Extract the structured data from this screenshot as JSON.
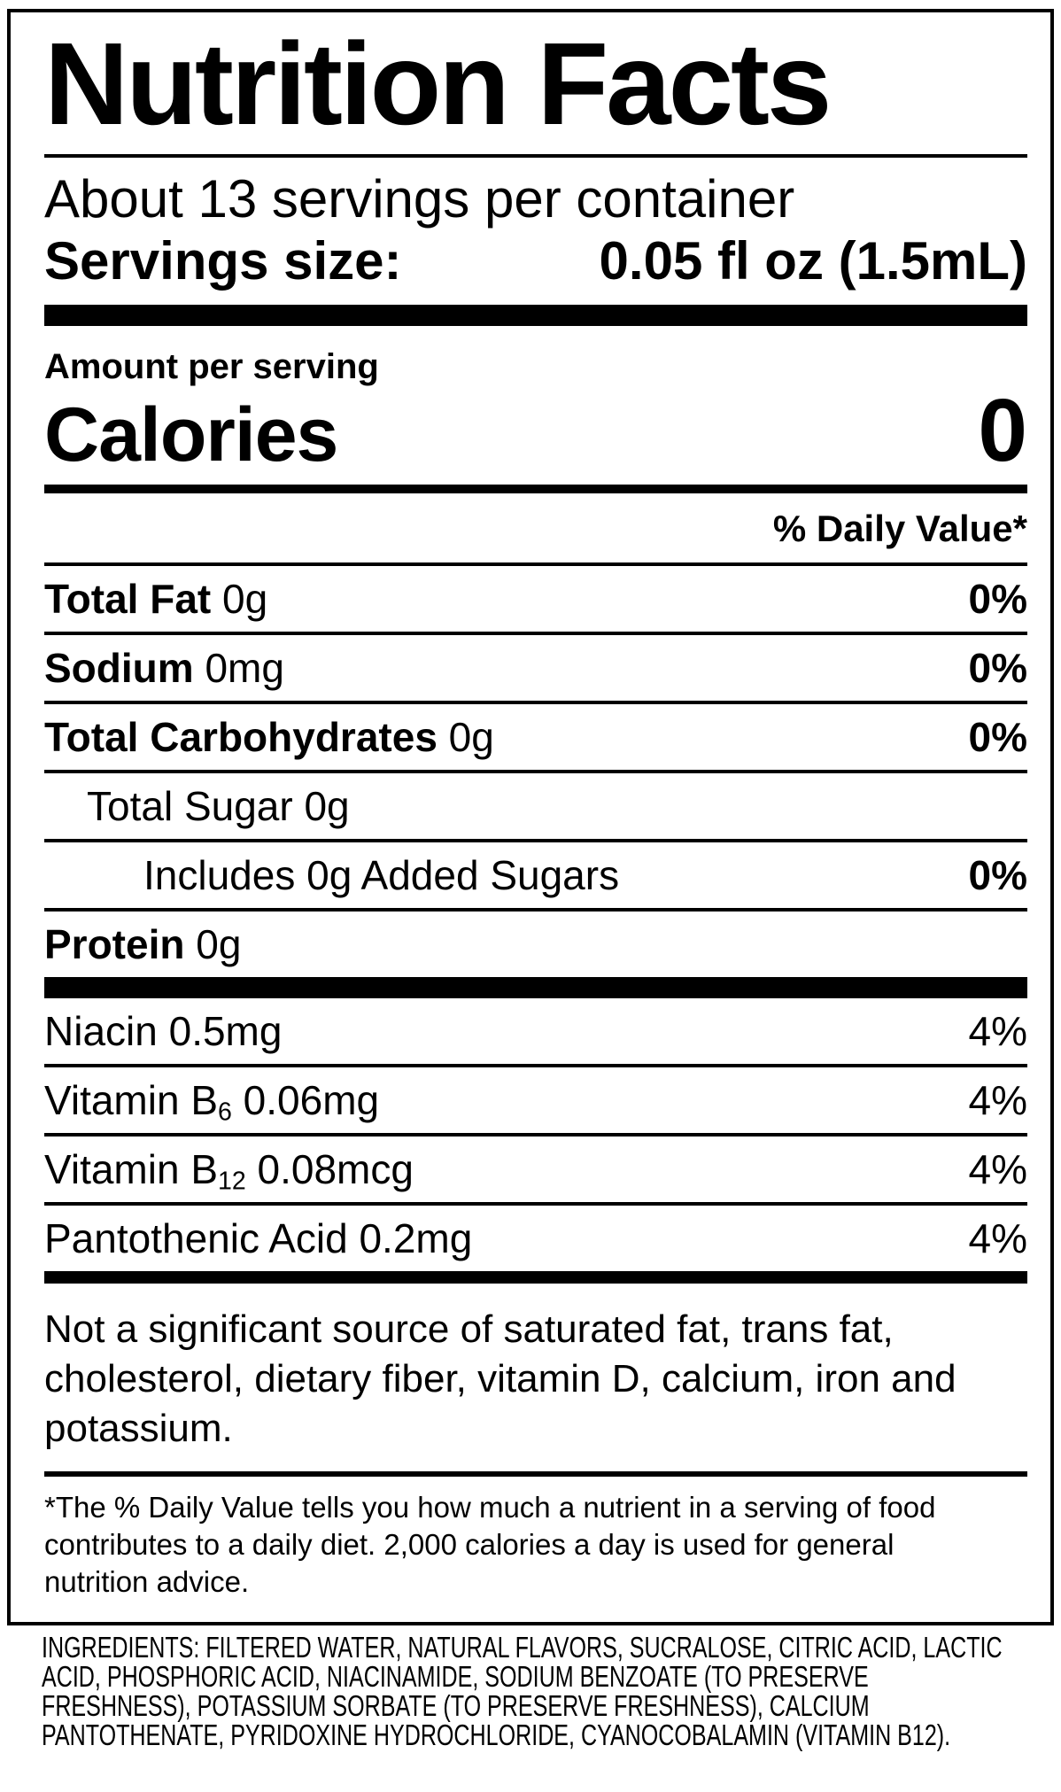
{
  "colors": {
    "ink": "#000000",
    "paper": "#ffffff"
  },
  "nutrition_label": {
    "title": "Nutrition Facts",
    "servings_per_container": "About 13 servings per container",
    "serving_size": {
      "label": "Servings size:",
      "value": "0.05 fl oz (1.5mL)"
    },
    "amount_per_serving_label": "Amount per serving",
    "calories": {
      "label": "Calories",
      "value": "0"
    },
    "daily_value_header": "% Daily Value*",
    "nutrient_rows": [
      {
        "name_bold": "Total Fat",
        "name_rest": " 0g",
        "daily_value": "0%"
      },
      {
        "name_bold": "Sodium",
        "name_rest": " 0mg",
        "daily_value": "0%"
      },
      {
        "name_bold": "Total Carbohydrates",
        "name_rest": " 0g",
        "daily_value": "0%"
      },
      {
        "name_bold": "",
        "name_rest": "Total Sugar 0g",
        "daily_value": ""
      },
      {
        "name_bold": "",
        "name_rest": "Includes 0g Added Sugars",
        "daily_value": "0%"
      },
      {
        "name_bold": "Protein",
        "name_rest": " 0g",
        "daily_value": ""
      }
    ],
    "vitamin_rows": [
      {
        "name": "Niacin 0.5mg",
        "subscript": "",
        "name_rest": "",
        "daily_value": "4%"
      },
      {
        "name": "Vitamin B",
        "subscript": "6",
        "name_rest": " 0.06mg",
        "daily_value": "4%"
      },
      {
        "name": "Vitamin B",
        "subscript": "12",
        "name_rest": " 0.08mcg",
        "daily_value": "4%"
      },
      {
        "name": "Pantothenic Acid 0.2mg",
        "subscript": "",
        "name_rest": "",
        "daily_value": "4%"
      }
    ],
    "not_significant_note": "Not a significant source of saturated fat, trans fat, cholesterol, dietary fiber, vitamin D, calcium, iron and potassium.",
    "daily_value_footnote": "*The % Daily Value tells you how much a nutrient in a serving of food contributes to a daily diet. 2,000 calories a day is used for general nutrition advice.",
    "ingredients": "INGREDIENTS: FILTERED WATER, NATURAL FLAVORS, SUCRALOSE, CITRIC ACID, LACTIC ACID, PHOSPHORIC ACID, NIACINAMIDE, SODIUM BENZOATE (TO PRESERVE FRESHNESS), POTASSIUM SORBATE (TO PRESERVE FRESHNESS), CALCIUM PANTOTHENATE, PYRIDOXINE HYDROCHLORIDE, CYANOCOBALAMIN (VITAMIN B12)."
  }
}
